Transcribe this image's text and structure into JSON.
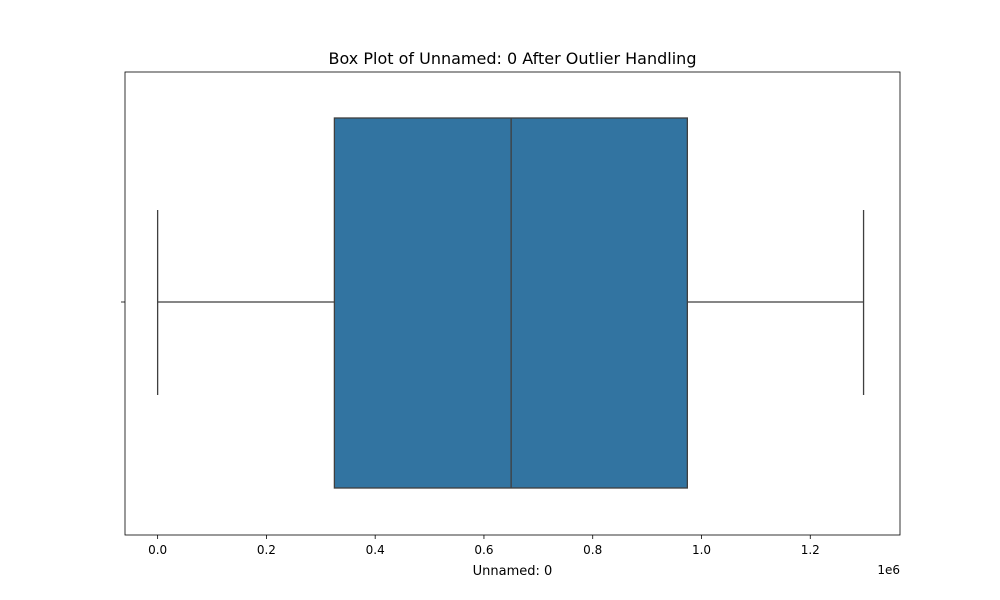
{
  "chart_data": {
    "type": "box",
    "orientation": "horizontal",
    "title": "Box Plot of Unnamed: 0 After Outlier Handling",
    "xlabel": "Unnamed: 0",
    "ylabel": "",
    "x_offset_label": "1e6",
    "xlim": [
      -60000,
      1365000
    ],
    "xticks": [
      0,
      200000,
      400000,
      600000,
      800000,
      1000000,
      1200000
    ],
    "xtick_labels": [
      "0.0",
      "0.2",
      "0.4",
      "0.6",
      "0.8",
      "1.0",
      "1.2"
    ],
    "box": {
      "whisker_low": 0,
      "q1": 325000,
      "median": 650000,
      "q3": 974000,
      "whisker_high": 1298000
    },
    "box_color": "#3274a1",
    "line_color": "#3f3f3f",
    "grid": false
  }
}
